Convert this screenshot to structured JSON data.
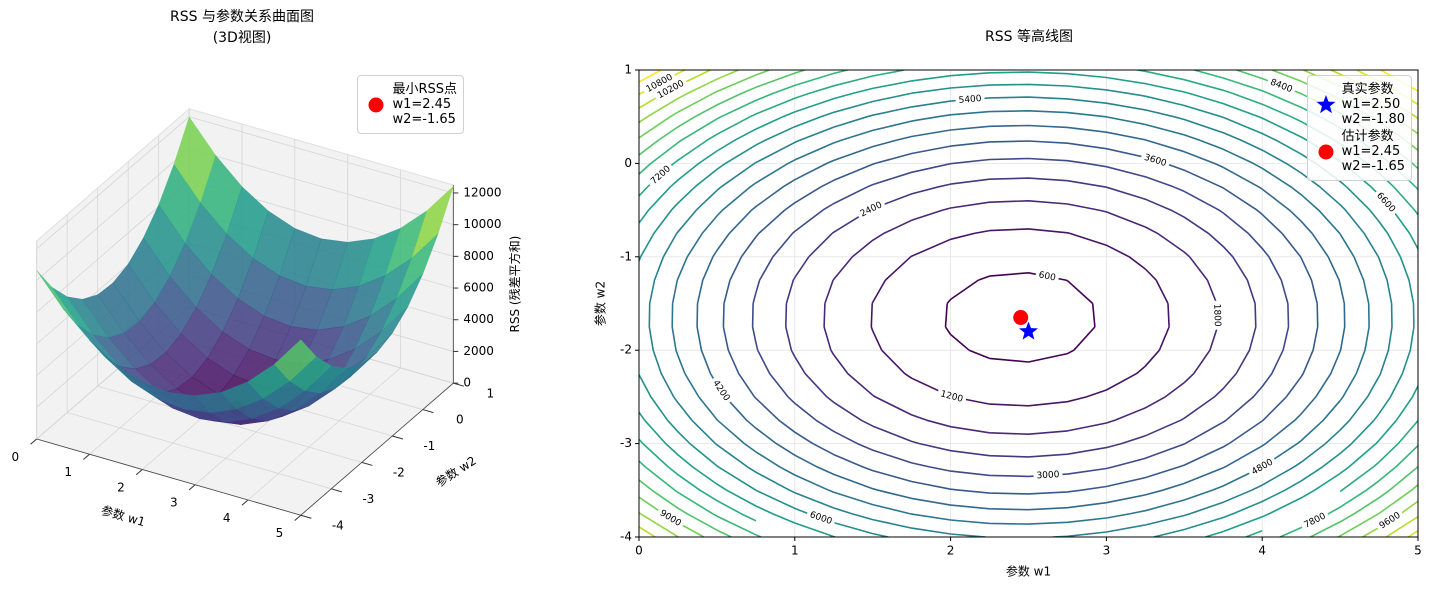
{
  "chart_data": [
    {
      "type": "surface3d",
      "title": "RSS 与参数关系曲面图",
      "subtitle": "(3D视图)",
      "x_label": "参数 w1",
      "y_label": "参数 w2",
      "z_label": "RSS (残差平方和)",
      "x": [
        0,
        0.5,
        1,
        1.5,
        2,
        2.5,
        3,
        3.5,
        4,
        4.5,
        5
      ],
      "y": [
        -4,
        -3.5,
        -3,
        -2.5,
        -2,
        -1.5,
        -1,
        -0.5,
        0,
        0.5,
        1
      ],
      "z": [
        [
          10632,
          8696,
          7200,
          6144,
          5528,
          5352,
          5616,
          6320,
          7464,
          9048,
          11072
        ],
        [
          8742,
          6806,
          5310,
          4254,
          3638,
          3462,
          3726,
          4430,
          5574,
          7158,
          9182
        ],
        [
          7302,
          5366,
          3870,
          2814,
          2198,
          2022,
          2286,
          2990,
          4134,
          5718,
          7742
        ],
        [
          6312,
          4376,
          2880,
          1824,
          1208,
          1032,
          1296,
          2000,
          3144,
          4728,
          6752
        ],
        [
          5772,
          3836,
          2340,
          1284,
          668,
          492,
          756,
          1460,
          2604,
          4188,
          6212
        ],
        [
          5682,
          3746,
          2250,
          1194,
          578,
          402,
          666,
          1370,
          2514,
          4098,
          6122
        ],
        [
          6042,
          4106,
          2610,
          1554,
          938,
          762,
          1026,
          1730,
          2874,
          4458,
          6482
        ],
        [
          6852,
          4916,
          3420,
          2364,
          1748,
          1572,
          1836,
          2540,
          3684,
          5268,
          7292
        ],
        [
          8112,
          6176,
          4680,
          3624,
          3008,
          2832,
          3096,
          3800,
          4944,
          6528,
          8552
        ],
        [
          9822,
          7886,
          6390,
          5334,
          4718,
          4542,
          4806,
          5510,
          6654,
          8238,
          10262
        ],
        [
          11982,
          10046,
          8550,
          7494,
          6878,
          6702,
          6966,
          7670,
          8814,
          10398,
          12422
        ]
      ],
      "colormap": "viridis",
      "xlim": [
        0,
        5
      ],
      "ylim": [
        -4,
        1
      ],
      "zlim": [
        0,
        12500
      ],
      "xticks": [
        0,
        1,
        2,
        3,
        4,
        5
      ],
      "yticks": [
        -4,
        -3,
        -2,
        -1,
        0,
        1
      ],
      "zticks": [
        0,
        2000,
        4000,
        6000,
        8000,
        10000,
        12000
      ],
      "legend": "upper right",
      "series": [
        {
          "name": "最小RSS点\nw1=2.45\nw2=-1.65",
          "color": "red",
          "marker": "circle",
          "x": [
            2.45
          ],
          "y": [
            -1.65
          ],
          "z": [
            382
          ]
        }
      ]
    },
    {
      "type": "contour",
      "title": "RSS 等高线图",
      "x_label": "参数 w1",
      "y_label": "参数 w2",
      "x": [
        0,
        0.25,
        0.5,
        0.75,
        1,
        1.25,
        1.5,
        1.75,
        2,
        2.25,
        2.5,
        2.75,
        3,
        3.25,
        3.5,
        3.75,
        4,
        4.25,
        4.5,
        4.75,
        5
      ],
      "y": [
        -4,
        -3.75,
        -3.5,
        -3.25,
        -3,
        -2.75,
        -2.5,
        -2.25,
        -2,
        -1.75,
        -1.5,
        -1.25,
        -1,
        -0.75,
        -0.5,
        -0.25,
        0,
        0.25,
        0.5,
        0.75,
        1
      ],
      "z": [
        [
          10632,
          9609,
          8696,
          7893,
          7200,
          6617,
          6144,
          5781,
          5528,
          5385,
          5352,
          5429,
          5616,
          5913,
          6320,
          6837,
          7464,
          8201,
          9048,
          10005,
          11072
        ],
        [
          9631,
          8608,
          7695,
          6892,
          6199,
          5616,
          5143,
          4780,
          4527,
          4384,
          4351,
          4428,
          4615,
          4912,
          5319,
          5836,
          6463,
          7200,
          8047,
          9004,
          10071
        ],
        [
          8742,
          7719,
          6806,
          6003,
          5310,
          4727,
          4254,
          3891,
          3638,
          3495,
          3462,
          3539,
          3726,
          4023,
          4430,
          4947,
          5574,
          6311,
          7158,
          8115,
          9182
        ],
        [
          7966,
          6943,
          6030,
          5227,
          4534,
          3951,
          3478,
          3115,
          2862,
          2719,
          2686,
          2763,
          2950,
          3247,
          3654,
          4171,
          4798,
          5535,
          6382,
          7339,
          8406
        ],
        [
          7302,
          6279,
          5366,
          4563,
          3870,
          3287,
          2814,
          2451,
          2198,
          2055,
          2022,
          2099,
          2286,
          2583,
          2990,
          3507,
          4134,
          4871,
          5718,
          6675,
          7742
        ],
        [
          6751,
          5728,
          4815,
          4012,
          3319,
          2736,
          2263,
          1900,
          1647,
          1504,
          1471,
          1548,
          1735,
          2032,
          2439,
          2956,
          3583,
          4320,
          5167,
          6124,
          7191
        ],
        [
          6312,
          5289,
          4376,
          3573,
          2880,
          2297,
          1824,
          1461,
          1208,
          1065,
          1032,
          1109,
          1296,
          1593,
          2000,
          2517,
          3144,
          3881,
          4728,
          5685,
          6752
        ],
        [
          5986,
          4963,
          4050,
          3247,
          2554,
          1971,
          1498,
          1135,
          882,
          739,
          706,
          783,
          970,
          1267,
          1674,
          2191,
          2818,
          3555,
          4402,
          5359,
          6426
        ],
        [
          5772,
          4749,
          3836,
          3033,
          2340,
          1757,
          1284,
          921,
          668,
          525,
          492,
          569,
          756,
          1053,
          1460,
          1977,
          2604,
          3341,
          4188,
          5145,
          6212
        ],
        [
          5671,
          4648,
          3735,
          2932,
          2239,
          1656,
          1183,
          820,
          567,
          424,
          391,
          468,
          655,
          952,
          1359,
          1876,
          2503,
          3240,
          4087,
          5044,
          6111
        ],
        [
          5682,
          4659,
          3746,
          2943,
          2250,
          1667,
          1194,
          831,
          578,
          435,
          402,
          479,
          666,
          963,
          1370,
          1887,
          2514,
          3251,
          4098,
          5055,
          6122
        ],
        [
          5806,
          4783,
          3870,
          3067,
          2374,
          1791,
          1318,
          955,
          702,
          559,
          526,
          603,
          790,
          1087,
          1494,
          2011,
          2638,
          3375,
          4222,
          5179,
          6246
        ],
        [
          6042,
          5019,
          4106,
          3303,
          2610,
          2027,
          1554,
          1191,
          938,
          795,
          762,
          839,
          1026,
          1323,
          1730,
          2247,
          2874,
          3611,
          4458,
          5415,
          6482
        ],
        [
          6391,
          5368,
          4455,
          3652,
          2959,
          2376,
          1903,
          1540,
          1287,
          1144,
          1111,
          1188,
          1375,
          1672,
          2079,
          2596,
          3223,
          3960,
          4807,
          5764,
          6831
        ],
        [
          6852,
          5829,
          4916,
          4113,
          3420,
          2837,
          2364,
          2001,
          1748,
          1605,
          1572,
          1649,
          1836,
          2133,
          2540,
          3057,
          3684,
          4421,
          5268,
          6225,
          7292
        ],
        [
          7426,
          6403,
          5490,
          4687,
          3994,
          3411,
          2938,
          2575,
          2322,
          2179,
          2146,
          2223,
          2410,
          2707,
          3114,
          3631,
          4258,
          4995,
          5842,
          6799,
          7866
        ],
        [
          8112,
          7089,
          6176,
          5373,
          4680,
          4097,
          3624,
          3261,
          3008,
          2865,
          2832,
          2909,
          3096,
          3393,
          3800,
          4317,
          4944,
          5681,
          6528,
          7485,
          8552
        ],
        [
          8911,
          7888,
          6975,
          6172,
          5479,
          4896,
          4423,
          4060,
          3807,
          3664,
          3631,
          3708,
          3895,
          4192,
          4599,
          5116,
          5743,
          6480,
          7327,
          8284,
          9351
        ],
        [
          9822,
          8799,
          7886,
          7083,
          6390,
          5807,
          5334,
          4971,
          4718,
          4575,
          4542,
          4619,
          4806,
          5103,
          5510,
          6027,
          6654,
          7391,
          8238,
          9195,
          10262
        ],
        [
          10846,
          9823,
          8910,
          8107,
          7414,
          6831,
          6358,
          5995,
          5742,
          5599,
          5566,
          5643,
          5830,
          6127,
          6534,
          7051,
          7678,
          8415,
          9262,
          10219,
          11286
        ],
        [
          11982,
          10959,
          10046,
          9243,
          8550,
          7967,
          7494,
          7131,
          6878,
          6735,
          6702,
          6779,
          6966,
          7263,
          7670,
          8187,
          8814,
          9551,
          10398,
          11355,
          12422
        ]
      ],
      "levels": [
        600,
        1200,
        1800,
        2400,
        3000,
        3600,
        4200,
        4800,
        5400,
        6000,
        6600,
        7200,
        7800,
        8400,
        9000,
        9600,
        10200,
        10800,
        11400
      ],
      "colormap": "viridis",
      "xlim": [
        0,
        5
      ],
      "ylim": [
        -4,
        1
      ],
      "xticks": [
        0,
        1,
        2,
        3,
        4,
        5
      ],
      "yticks": [
        -4,
        -3,
        -2,
        -1,
        0,
        1
      ],
      "grid": true,
      "legend": "upper right",
      "series": [
        {
          "name": "真实参数\nw1=2.50\nw2=-1.80",
          "color": "blue",
          "marker": "star",
          "x": [
            2.5
          ],
          "y": [
            -1.8
          ]
        },
        {
          "name": "估计参数\nw1=2.45\nw2=-1.65",
          "color": "red",
          "marker": "circle",
          "x": [
            2.45
          ],
          "y": [
            -1.65
          ]
        }
      ]
    }
  ]
}
